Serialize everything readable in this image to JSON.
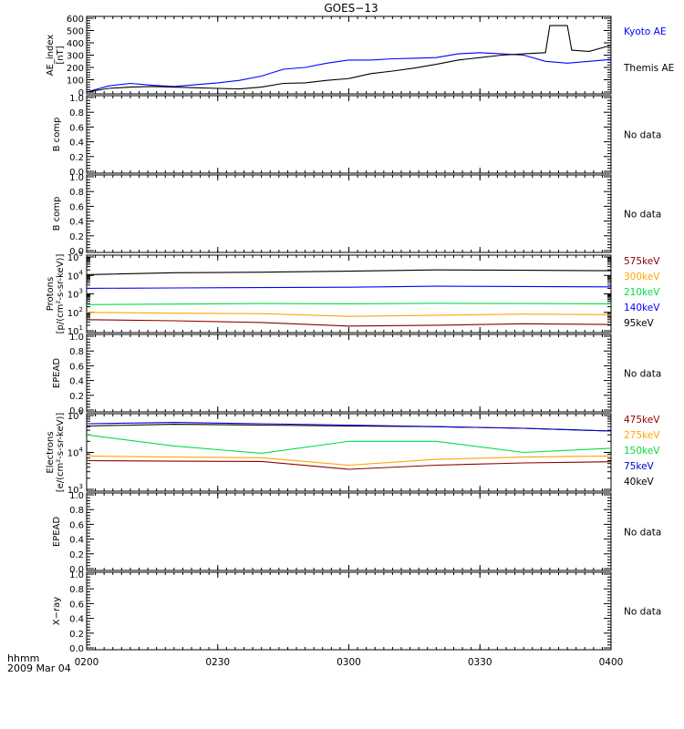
{
  "title": "GOES−13",
  "footer": {
    "hhmm": "hhmm",
    "date": "2009 Mar 04"
  },
  "colors": {
    "black": "#000000",
    "blue": "#0000ff",
    "red": "#8b0000",
    "orange": "#ffa500",
    "green": "#00dd44",
    "dark_blue": "#0000cd"
  },
  "chart_data": [
    {
      "type": "line",
      "id": "ae",
      "ylabel": "AE_index\n[nT]",
      "ylim": [
        0,
        600
      ],
      "yticks": [
        "0",
        "100",
        "200",
        "300",
        "400",
        "500",
        "600"
      ],
      "xlim": [
        0,
        120
      ],
      "legend": [
        "Kyoto AE",
        "Themis AE"
      ],
      "series": [
        {
          "name": "Kyoto AE",
          "color": "#0000ff",
          "x": [
            0,
            5,
            10,
            15,
            20,
            25,
            30,
            35,
            40,
            45,
            50,
            55,
            60,
            65,
            70,
            75,
            80,
            85,
            90,
            95,
            100,
            105,
            110,
            115,
            120
          ],
          "y": [
            0,
            50,
            70,
            55,
            45,
            60,
            75,
            95,
            130,
            185,
            200,
            235,
            260,
            260,
            270,
            275,
            280,
            310,
            320,
            310,
            300,
            250,
            235,
            250,
            265
          ]
        },
        {
          "name": "Themis AE",
          "color": "#000000",
          "x": [
            0,
            5,
            10,
            15,
            20,
            25,
            30,
            35,
            40,
            45,
            50,
            55,
            60,
            65,
            70,
            75,
            80,
            85,
            90,
            95,
            100,
            105,
            106,
            110,
            111,
            115,
            118,
            120
          ],
          "y": [
            0,
            30,
            40,
            45,
            40,
            35,
            30,
            25,
            40,
            70,
            75,
            95,
            110,
            150,
            170,
            195,
            225,
            260,
            280,
            300,
            310,
            320,
            540,
            540,
            340,
            330,
            360,
            380
          ]
        }
      ]
    },
    {
      "type": "line",
      "id": "b1",
      "ylabel": "B comp",
      "ylim": [
        0,
        1
      ],
      "yticks": [
        "0.0",
        "0.2",
        "0.4",
        "0.6",
        "0.8",
        "1.0"
      ],
      "note": "No data",
      "series": []
    },
    {
      "type": "line",
      "id": "b2",
      "ylabel": "B comp",
      "ylim": [
        0,
        1
      ],
      "yticks": [
        "0.0",
        "0.2",
        "0.4",
        "0.6",
        "0.8",
        "1.0"
      ],
      "note": "No data",
      "series": []
    },
    {
      "type": "line",
      "id": "protons",
      "ylabel": "Protons\n[p/(cm²-s-sr-keV)]",
      "ylim": [
        10,
        100000
      ],
      "log": true,
      "legend": [
        "575keV",
        "300keV",
        "210keV",
        "140keV",
        "95keV"
      ],
      "series": [
        {
          "name": "95keV",
          "color": "#000000",
          "x": [
            0,
            20,
            40,
            60,
            80,
            100,
            120
          ],
          "y": [
            11000,
            14000,
            15000,
            17000,
            20000,
            19000,
            18000
          ]
        },
        {
          "name": "140keV",
          "color": "#0000ff",
          "x": [
            0,
            20,
            40,
            60,
            80,
            100,
            120
          ],
          "y": [
            2000,
            2100,
            2200,
            2300,
            2600,
            2500,
            2400
          ]
        },
        {
          "name": "210keV",
          "color": "#00dd44",
          "x": [
            0,
            20,
            40,
            60,
            80,
            100,
            120
          ],
          "y": [
            260,
            280,
            300,
            290,
            310,
            300,
            290
          ]
        },
        {
          "name": "300keV",
          "color": "#ffa500",
          "x": [
            0,
            20,
            40,
            60,
            80,
            100,
            120
          ],
          "y": [
            100,
            90,
            85,
            60,
            70,
            80,
            75
          ]
        },
        {
          "name": "575keV",
          "color": "#8b0000",
          "x": [
            0,
            20,
            40,
            60,
            80,
            100,
            120
          ],
          "y": [
            40,
            35,
            28,
            18,
            20,
            24,
            22
          ]
        }
      ]
    },
    {
      "type": "line",
      "id": "epead1",
      "ylabel": "EPEAD",
      "ylim": [
        0,
        1
      ],
      "yticks": [
        "0.0",
        "0.2",
        "0.4",
        "0.6",
        "0.8",
        "1.0"
      ],
      "note": "No data",
      "series": []
    },
    {
      "type": "line",
      "id": "electrons",
      "ylabel": "Electrons\n[e/(cm²-s-sr-keV)]",
      "ylim": [
        1000,
        100000
      ],
      "log": true,
      "legend": [
        "475keV",
        "275keV",
        "150keV",
        "75keV",
        "40keV"
      ],
      "series": [
        {
          "name": "40keV",
          "color": "#000000",
          "x": [
            0,
            20,
            40,
            60,
            80,
            100,
            120
          ],
          "y": [
            52000,
            58000,
            55000,
            52000,
            50000,
            45000,
            38000
          ]
        },
        {
          "name": "75keV",
          "color": "#0000cd",
          "x": [
            0,
            20,
            40,
            60,
            80,
            100,
            120
          ],
          "y": [
            60000,
            65000,
            60000,
            55000,
            50000,
            45000,
            38000
          ]
        },
        {
          "name": "150keV",
          "color": "#00dd44",
          "x": [
            0,
            20,
            40,
            60,
            80,
            100,
            120
          ],
          "y": [
            30000,
            15000,
            9500,
            20000,
            20000,
            10000,
            13000
          ]
        },
        {
          "name": "275keV",
          "color": "#ffa500",
          "x": [
            0,
            20,
            40,
            60,
            80,
            100,
            120
          ],
          "y": [
            8000,
            7500,
            7200,
            4500,
            6500,
            7500,
            8000
          ]
        },
        {
          "name": "475keV",
          "color": "#8b0000",
          "x": [
            0,
            20,
            40,
            60,
            80,
            100,
            120
          ],
          "y": [
            6000,
            5800,
            5700,
            3500,
            4500,
            5200,
            5600
          ]
        }
      ]
    },
    {
      "type": "line",
      "id": "epead2",
      "ylabel": "EPEAD",
      "ylim": [
        0,
        1
      ],
      "yticks": [
        "0.0",
        "0.2",
        "0.4",
        "0.6",
        "0.8",
        "1.0"
      ],
      "note": "No data",
      "series": []
    },
    {
      "type": "line",
      "id": "xray",
      "ylabel": "X−ray",
      "ylim": [
        0,
        1
      ],
      "yticks": [
        "0.0",
        "0.2",
        "0.4",
        "0.6",
        "0.8",
        "1.0"
      ],
      "note": "No data",
      "series": []
    }
  ],
  "xticks": [
    "0200",
    "0230",
    "0300",
    "0330",
    "0400"
  ]
}
